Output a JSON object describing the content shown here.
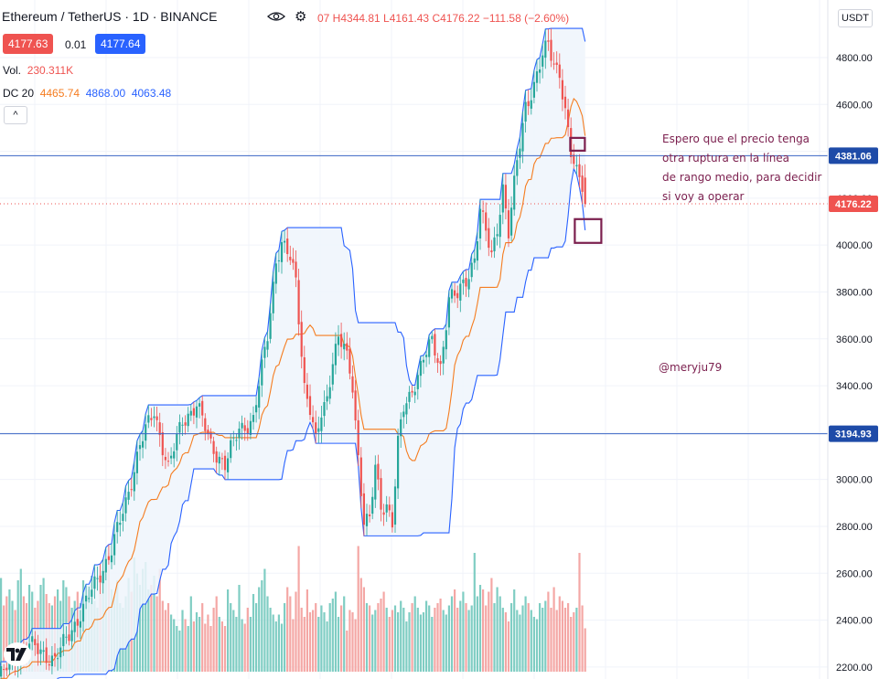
{
  "header": {
    "title": "Ethereum / TetherUS · 1D · BINANCE",
    "ohlc": "07 H4344.81 L4161.43 C4176.22 −111.58 (−2.60%)",
    "bid": "4177.63",
    "spread": "0.01",
    "ask": "4177.64",
    "currency": "USDT"
  },
  "indicators": {
    "vol_label": "Vol.",
    "vol_value": "230.311K",
    "dc_label": "DC 20",
    "dc_basis": "4465.74",
    "dc_upper": "4868.00",
    "dc_lower": "4063.48",
    "collapse": "^"
  },
  "annotation": {
    "line1": "Espero que el precio tenga",
    "line2": "otra ruptura en la línea",
    "line3": "de rango medio, para decidir",
    "line4": "si voy a operar"
  },
  "watermark": "@meryju79",
  "colors": {
    "up": "#26a69a",
    "down": "#ef5350",
    "upper": "#2962ff",
    "basis": "#f57c1f",
    "fill": "#eef4fb",
    "annot": "#7b1f4e",
    "hline": "#3a64c4"
  },
  "chart_data": {
    "type": "candlestick",
    "ylim": [
      2180,
      4960
    ],
    "yticks": [
      "2200.00",
      "2400.00",
      "2600.00",
      "2800.00",
      "3000.00",
      "3200.00",
      "3400.00",
      "3600.00",
      "3800.00",
      "4000.00",
      "4200.00",
      "4400.00",
      "4600.00",
      "4800.00"
    ],
    "hlines": [
      {
        "value": 4381.06,
        "label": "4381.06"
      },
      {
        "value": 3194.93,
        "label": "3194.93"
      }
    ],
    "last_price": {
      "value": 4176.22,
      "label": "4176.22"
    },
    "anchors": [
      [
        0,
        2150
      ],
      [
        10,
        2300
      ],
      [
        20,
        2230
      ],
      [
        30,
        2450
      ],
      [
        40,
        2700
      ],
      [
        45,
        2900
      ],
      [
        50,
        3150
      ],
      [
        55,
        3290
      ],
      [
        60,
        3050
      ],
      [
        65,
        3250
      ],
      [
        70,
        3320
      ],
      [
        75,
        3150
      ],
      [
        80,
        3060
      ],
      [
        85,
        3220
      ],
      [
        90,
        3250
      ],
      [
        95,
        3620
      ],
      [
        98,
        3940
      ],
      [
        100,
        4000
      ],
      [
        103,
        3940
      ],
      [
        105,
        3850
      ],
      [
        108,
        3400
      ],
      [
        110,
        3300
      ],
      [
        112,
        3150
      ],
      [
        114,
        3280
      ],
      [
        116,
        3350
      ],
      [
        118,
        3520
      ],
      [
        120,
        3600
      ],
      [
        122,
        3560
      ],
      [
        125,
        3400
      ],
      [
        127,
        3100
      ],
      [
        129,
        2830
      ],
      [
        131,
        2820
      ],
      [
        133,
        3050
      ],
      [
        135,
        2880
      ],
      [
        137,
        2900
      ],
      [
        139,
        2820
      ],
      [
        141,
        3150
      ],
      [
        143,
        3300
      ],
      [
        145,
        3350
      ],
      [
        147,
        3420
      ],
      [
        150,
        3520
      ],
      [
        153,
        3580
      ],
      [
        156,
        3480
      ],
      [
        159,
        3780
      ],
      [
        162,
        3780
      ],
      [
        165,
        3850
      ],
      [
        168,
        3950
      ],
      [
        170,
        4150
      ],
      [
        172,
        4050
      ],
      [
        174,
        3950
      ],
      [
        176,
        4080
      ],
      [
        178,
        4250
      ],
      [
        180,
        4050
      ],
      [
        183,
        4350
      ],
      [
        186,
        4600
      ],
      [
        189,
        4680
      ],
      [
        192,
        4800
      ],
      [
        194,
        4860
      ],
      [
        196,
        4780
      ],
      [
        198,
        4740
      ],
      [
        200,
        4560
      ],
      [
        202,
        4380
      ],
      [
        204,
        4310
      ],
      [
        206,
        4270
      ],
      [
        207,
        4180
      ]
    ],
    "volumes": [
      0.38,
      0.41,
      0.29,
      0.33,
      0.36,
      0.31,
      0.27,
      0.4,
      0.45,
      0.33,
      0.3,
      0.38,
      0.35,
      0.28,
      0.31,
      0.38,
      0.41,
      0.34,
      0.3,
      0.29,
      0.33,
      0.36,
      0.31,
      0.4,
      0.37,
      0.33,
      0.28,
      0.31,
      0.35,
      0.3,
      0.4,
      0.33,
      0.36,
      0.42,
      0.31,
      0.28,
      0.47,
      0.39,
      0.43,
      0.52,
      0.36,
      0.33,
      0.4,
      0.3,
      0.28,
      0.33,
      0.41,
      0.35,
      0.5,
      0.43,
      0.38,
      0.45,
      0.48,
      0.36,
      0.38,
      0.42,
      0.33,
      0.45,
      0.31,
      0.27,
      0.3,
      0.25,
      0.23,
      0.2,
      0.18,
      0.27,
      0.23,
      0.2,
      0.33,
      0.22,
      0.26,
      0.24,
      0.3,
      0.21,
      0.25,
      0.2,
      0.28,
      0.33,
      0.24,
      0.22,
      0.2,
      0.36,
      0.3,
      0.27,
      0.24,
      0.38,
      0.23,
      0.21,
      0.28,
      0.24,
      0.34,
      0.3,
      0.37,
      0.4,
      0.45,
      0.33,
      0.28,
      0.25,
      0.22,
      0.25,
      0.21,
      0.3,
      0.37,
      0.33,
      0.23,
      0.35,
      0.55,
      0.28,
      0.24,
      0.36,
      0.26,
      0.27,
      0.3,
      0.24,
      0.29,
      0.26,
      0.22,
      0.3,
      0.32,
      0.35,
      0.24,
      0.29,
      0.33,
      0.18,
      0.27,
      0.26,
      0.23,
      0.55,
      0.41,
      0.37,
      0.3,
      0.29,
      0.25,
      0.27,
      0.3,
      0.32,
      0.35,
      0.28,
      0.24,
      0.27,
      0.29,
      0.26,
      0.31,
      0.28,
      0.22,
      0.26,
      0.3,
      0.33,
      0.28,
      0.25,
      0.26,
      0.31,
      0.29,
      0.24,
      0.28,
      0.3,
      0.32,
      0.27,
      0.25,
      0.29,
      0.33,
      0.36,
      0.28,
      0.31,
      0.35,
      0.3,
      0.27,
      0.29,
      0.52,
      0.33,
      0.38,
      0.36,
      0.29,
      0.35,
      0.41,
      0.3,
      0.37,
      0.33,
      0.28,
      0.26,
      0.22,
      0.3,
      0.36,
      0.27,
      0.25,
      0.29,
      0.33,
      0.3,
      0.27,
      0.24,
      0.23,
      0.3,
      0.28,
      0.31,
      0.35,
      0.28,
      0.37,
      0.27,
      0.33,
      0.31,
      0.28,
      0.3,
      0.24,
      0.26,
      0.28,
      0.52,
      0.29,
      0.19
    ]
  }
}
